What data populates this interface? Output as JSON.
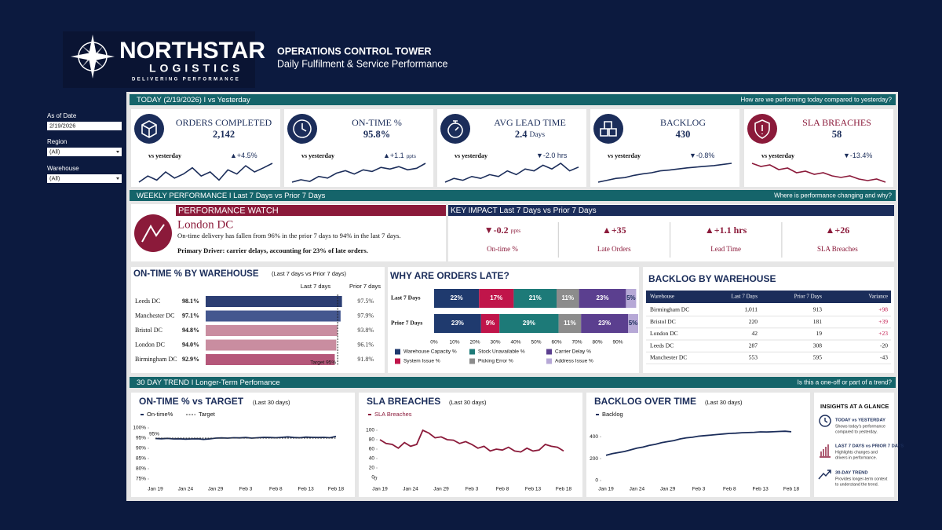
{
  "header": {
    "brand": "NORTHSTAR",
    "brand_sub": "LOGISTICS",
    "tagline": "DELIVERING PERFORMANCE",
    "title": "OPERATIONS CONTROL TOWER",
    "subtitle": "Daily Fulfilment & Service Performance"
  },
  "filters": [
    {
      "label": "As of Date",
      "value": "2/19/2026"
    },
    {
      "label": "Region",
      "value": "(All)"
    },
    {
      "label": "Warehouse",
      "value": "(All)"
    }
  ],
  "today": {
    "heading": "TODAY  (2/19/2026)  I  vs Yesterday",
    "question": "How are we performing today compared to yesterday?",
    "kpis": [
      {
        "label": "ORDERS COMPLETED",
        "value": "2,142",
        "compare": "vs yesterday",
        "change": "▲+4.5%",
        "color": "#1b2d5a",
        "trend": [
          2050,
          2080,
          2060,
          2100,
          2070,
          2090,
          2120,
          2080,
          2100,
          2060,
          2110,
          2090,
          2130,
          2100,
          2120,
          2142
        ]
      },
      {
        "label": "ON-TIME %",
        "value": "95.8%",
        "compare": "vs yesterday",
        "change": "▲+1.1",
        "change_unit": "ppts",
        "color": "#1b2d5a",
        "trend": [
          93.5,
          93.8,
          93.6,
          94.2,
          94.0,
          94.6,
          94.9,
          94.5,
          95.0,
          94.8,
          95.3,
          95.1,
          95.4,
          95.0,
          95.2,
          95.8
        ]
      },
      {
        "label": "AVG LEAD TIME",
        "value": "2.4",
        "value_unit": "Days",
        "compare": "vs yesterday",
        "change": "▼-2.0 hrs",
        "color": "#1b2d5a",
        "trend": [
          2.0,
          2.1,
          2.05,
          2.15,
          2.1,
          2.2,
          2.15,
          2.3,
          2.2,
          2.35,
          2.3,
          2.45,
          2.35,
          2.5,
          2.3,
          2.4
        ]
      },
      {
        "label": "BACKLOG",
        "value": "430",
        "compare": "vs yesterday",
        "change": "▼-0.8%",
        "color": "#1b2d5a",
        "trend": [
          380,
          385,
          390,
          392,
          398,
          402,
          405,
          410,
          412,
          415,
          418,
          420,
          422,
          424,
          427,
          430
        ]
      },
      {
        "label": "SLA BREACHES",
        "value": "58",
        "compare": "vs yesterday",
        "change": "▼-13.4%",
        "color": "#8b1a3a",
        "trend": [
          70,
          68,
          69,
          66,
          67,
          64,
          65,
          63,
          64,
          62,
          61,
          62,
          60,
          59,
          60,
          58
        ]
      }
    ]
  },
  "weekly": {
    "heading": "WEEKLY PERFORMANCE   I   Last 7 Days vs Prior 7 Days",
    "question": "Where is performance changing and why?",
    "watch": {
      "title": "PERFORMANCE WATCH",
      "location": "London DC",
      "text": "On-time delivery has fallen from 96% in the prior 7 days to 94% in the last 7 days.",
      "driver": "Primary Driver: carrier delays, accounting for 23% of late orders."
    },
    "key_impact": {
      "title": "KEY IMPACT   Last 7 Days vs Prior 7 Days",
      "items": [
        {
          "value": "▼-0.2",
          "unit": "ppts",
          "label": "On-time %"
        },
        {
          "value": "▲+35",
          "label": "Late Orders"
        },
        {
          "value": "▲+1.1 hrs",
          "label": "Lead Time"
        },
        {
          "value": "▲+26",
          "label": "SLA Breaches"
        }
      ]
    },
    "on_time_by_warehouse": {
      "type": "bar",
      "title": "ON-TIME % BY WAREHOUSE",
      "subtitle": "(Last 7 days vs Prior 7 days)",
      "column_labels": [
        "Last 7 days",
        "Prior 7 days"
      ],
      "categories": [
        "Leeds DC",
        "Manchester DC",
        "Bristol DC",
        "London DC",
        "Birmingham DC"
      ],
      "values": [
        98.1,
        97.1,
        94.8,
        94.0,
        92.9
      ],
      "value_labels": [
        "98.1%",
        "97.1%",
        "94.8%",
        "94.0%",
        "92.9%"
      ],
      "prior_labels": [
        "97.5%",
        "97.9%",
        "93.8%",
        "96.1%",
        "91.8%"
      ],
      "colors": [
        "#2c3e73",
        "#44578f",
        "#c98da0",
        "#c98da0",
        "#b5577a"
      ],
      "xlim": [
        0,
        100
      ],
      "target": 95,
      "target_label": "Target 95%"
    },
    "late_reasons": {
      "type": "stacked-bar",
      "title": "WHY ARE ORDERS LATE?",
      "categories": [
        "Last 7 Days",
        "Prior 7 Days"
      ],
      "series": [
        {
          "name": "Warehouse Capacity %",
          "color": "#1f3a6e",
          "values": [
            22,
            23
          ],
          "value_labels": [
            "22%",
            "23%"
          ]
        },
        {
          "name": "System Issue %",
          "color": "#c0154a",
          "values": [
            17,
            9
          ],
          "value_labels": [
            "17%",
            "9%"
          ]
        },
        {
          "name": "Stock Unavailable %",
          "color": "#1d7a78",
          "values": [
            21,
            29
          ],
          "value_labels": [
            "21%",
            "29%"
          ]
        },
        {
          "name": "Picking Error %",
          "color": "#8c8c8c",
          "values": [
            11,
            11
          ],
          "value_labels": [
            "11%",
            "11%"
          ]
        },
        {
          "name": "Carrier Delay %",
          "color": "#5b3f8f",
          "values": [
            23,
            23
          ],
          "value_labels": [
            "23%",
            "23%"
          ]
        },
        {
          "name": "Address Issue %",
          "color": "#b6a8d6",
          "values": [
            5,
            5
          ],
          "value_labels": [
            "5%",
            "5%"
          ]
        }
      ],
      "xlim": [
        0,
        100
      ],
      "xticks": [
        {
          "value": 0,
          "label": "0%"
        },
        {
          "value": 10,
          "label": "10%"
        },
        {
          "value": 20,
          "label": "20%"
        },
        {
          "value": 30,
          "label": "30%"
        },
        {
          "value": 40,
          "label": "40%"
        },
        {
          "value": 50,
          "label": "50%"
        },
        {
          "value": 60,
          "label": "60%"
        },
        {
          "value": 70,
          "label": "70%"
        },
        {
          "value": 80,
          "label": "80%"
        },
        {
          "value": 90,
          "label": "90%"
        }
      ]
    },
    "backlog_table": {
      "title": "BACKLOG BY WAREHOUSE",
      "columns": [
        "Warehouse",
        "Last 7 Days",
        "Prior 7 Days",
        "Variance"
      ],
      "rows": [
        [
          "Birmingham DC",
          "1,011",
          "913",
          "+98"
        ],
        [
          "Bristol DC",
          "220",
          "181",
          "+39"
        ],
        [
          "London DC",
          "42",
          "19",
          "+23"
        ],
        [
          "Leeds DC",
          "287",
          "308",
          "-20"
        ],
        [
          "Manchester DC",
          "553",
          "595",
          "-43"
        ]
      ]
    }
  },
  "trend": {
    "heading": "30 DAY TREND   I   Longer-Term Perfomance",
    "question": "Is this a one-off or part of a trend?",
    "charts": [
      {
        "type": "line",
        "title": "ON-TIME % vs TARGET",
        "subtitle": "(Last 30 days)",
        "categories": [
          "Jan 19",
          null,
          null,
          null,
          null,
          "Jan 24",
          null,
          null,
          null,
          null,
          "Jan 29",
          null,
          null,
          null,
          null,
          "Feb 3",
          null,
          null,
          null,
          null,
          "Feb 8",
          null,
          null,
          null,
          null,
          "Feb 13",
          null,
          null,
          null,
          null,
          "Feb 18"
        ],
        "series": [
          {
            "name": "On-time%",
            "color": "#1b2d5a",
            "values": [
              94.8,
              94.7,
              94.9,
              94.6,
              94.7,
              94.5,
              94.6,
              94.7,
              94.4,
              94.6,
              95.0,
              95.1,
              95.0,
              95.2,
              95.1,
              95.3,
              95.0,
              95.2,
              95.4,
              95.3,
              95.2,
              95.4,
              95.6,
              95.3,
              95.2,
              95.5,
              95.4,
              95.3,
              95.4,
              95.2,
              95.9
            ]
          }
        ],
        "target": {
          "name": "Target",
          "value": 95,
          "label": "95%"
        },
        "ylim": [
          75,
          100
        ],
        "yticks": [
          {
            "value": 100,
            "label": "100%"
          },
          {
            "value": 95,
            "label": "95%"
          },
          {
            "value": 90,
            "label": "90%"
          },
          {
            "value": 85,
            "label": "85%"
          },
          {
            "value": 80,
            "label": "80%"
          },
          {
            "value": 75,
            "label": "75%"
          }
        ]
      },
      {
        "type": "line",
        "title": "SLA BREACHES",
        "subtitle": "(Last 30 days)",
        "categories": [
          "Jan 19",
          null,
          null,
          null,
          null,
          "Jan 24",
          null,
          null,
          null,
          null,
          "Jan 29",
          null,
          null,
          null,
          null,
          "Feb 3",
          null,
          null,
          null,
          null,
          "Feb 8",
          null,
          null,
          null,
          null,
          "Feb 13",
          null,
          null,
          null,
          null,
          "Feb 18"
        ],
        "series": [
          {
            "name": "SLA Breaches",
            "color": "#8b1a3a",
            "values": [
              80,
              72,
              70,
              62,
              74,
              66,
              70,
              100,
              94,
              84,
              86,
              80,
              79,
              72,
              76,
              70,
              62,
              66,
              56,
              60,
              58,
              64,
              56,
              54,
              62,
              56,
              58,
              70,
              66,
              64,
              56
            ]
          }
        ],
        "origin_label": "0",
        "ylim": [
          0,
          100
        ],
        "yticks": [
          100,
          80,
          60,
          40,
          20,
          0
        ]
      },
      {
        "type": "line",
        "title": "BACKLOG OVER TIME",
        "subtitle": "(Last 30 days)",
        "categories": [
          "Jan 19",
          null,
          null,
          null,
          null,
          "Jan 24",
          null,
          null,
          null,
          null,
          "Jan 29",
          null,
          null,
          null,
          null,
          "Feb 3",
          null,
          null,
          null,
          null,
          "Feb 8",
          null,
          null,
          null,
          null,
          "Feb 13",
          null,
          null,
          null,
          null,
          "Feb 18"
        ],
        "series": [
          {
            "name": "Backlog",
            "color": "#1b2d5a",
            "values": [
              230,
              245,
              255,
              265,
              280,
              295,
              305,
              320,
              330,
              345,
              355,
              365,
              380,
              390,
              395,
              405,
              410,
              415,
              420,
              425,
              430,
              432,
              436,
              438,
              440,
              444,
              443,
              445,
              448,
              450,
              445
            ]
          }
        ],
        "ylim": [
          0,
          480
        ],
        "yticks": [
          400,
          200,
          0
        ]
      }
    ],
    "insights": {
      "title": "INSIGHTS AT A GLANCE",
      "items": [
        {
          "title": "TODAY vs YESTERDAY",
          "lines": [
            "Shows today's performance",
            "compared to yesterday."
          ]
        },
        {
          "title": "LAST 7 DAYS vs PRIOR 7 DAYS",
          "lines": [
            "Highlights changes and",
            "drivers in performance."
          ]
        },
        {
          "title": "30-DAY TREND",
          "lines": [
            "Provides longer-term context",
            "to understand the trend."
          ]
        }
      ]
    }
  }
}
